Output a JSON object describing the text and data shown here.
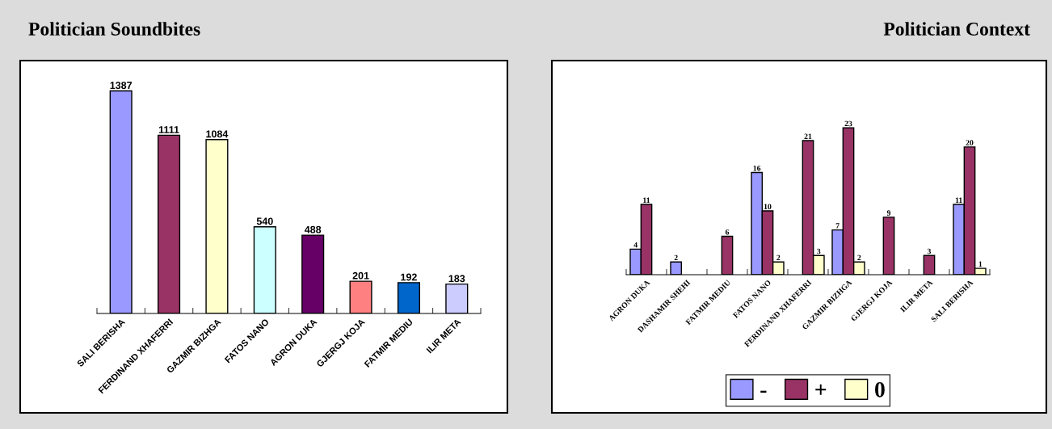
{
  "chart_data": [
    {
      "type": "bar",
      "title": "Politician Soundbites",
      "categories": [
        "SALI BERISHA",
        "FERDINAND XHAFERRI",
        "GAZMIR BIZHGA",
        "FATOS NANO",
        "AGRON DUKA",
        "GJERGJ KOJA",
        "FATMIR MEDIU",
        "ILIR META"
      ],
      "values": [
        1387,
        1111,
        1084,
        540,
        488,
        201,
        192,
        183
      ],
      "colors": [
        "#9999ff",
        "#993366",
        "#ffffcc",
        "#ccffff",
        "#660066",
        "#ff8080",
        "#0066cc",
        "#ccccff"
      ],
      "data_labels": true
    },
    {
      "type": "bar",
      "title": "Politician Context",
      "categories": [
        "AGRON DUKA",
        "DASHAMIR SHEHI",
        "FATMIR MEDIU",
        "FATOS NANO",
        "FERDINAND XHAFERRI",
        "GAZMIR BIZHGA",
        "GJERGJ KOJA",
        "ILIR META",
        "SALI BERISHA"
      ],
      "series": [
        {
          "name": "-",
          "color": "#9999ff",
          "values": [
            4,
            2,
            null,
            16,
            null,
            7,
            null,
            null,
            11
          ]
        },
        {
          "name": "+",
          "color": "#993366",
          "values": [
            11,
            null,
            6,
            10,
            21,
            23,
            9,
            3,
            20
          ]
        },
        {
          "name": "0",
          "color": "#ffffcc",
          "values": [
            null,
            null,
            null,
            2,
            3,
            2,
            null,
            null,
            1
          ]
        }
      ],
      "data_labels": true,
      "legend": "bottom"
    }
  ]
}
